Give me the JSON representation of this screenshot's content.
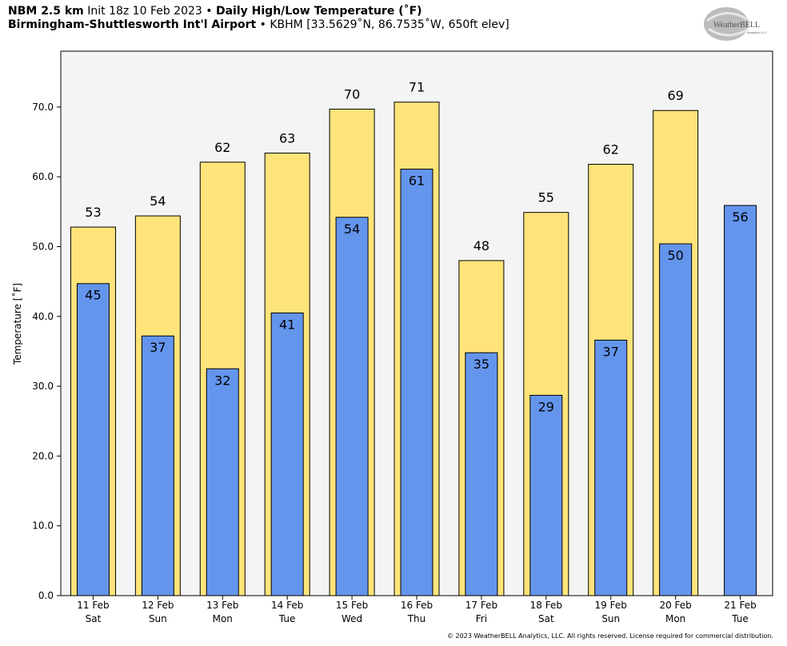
{
  "header": {
    "model": "NBM 2.5 km",
    "init": "Init 18z 10 Feb 2023",
    "bullet": "•",
    "title": "Daily High/Low Temperature (˚F)",
    "station_name": "Birmingham-Shuttlesworth Int'l Airport",
    "station_info": "KBHM [33.5629˚N, 86.7535˚W, 650ft elev]"
  },
  "logo": {
    "text_large": "WeatherBELL",
    "text_small": "Analytics LLC"
  },
  "copyright": "© 2023 WeatherBELL Analytics, LLC. All rights reserved. License required for commercial distribution.",
  "colors": {
    "high": "#ffe47a",
    "low": "#6495ed",
    "plot_bg": "#f4f4f4"
  },
  "chart_data": {
    "type": "bar",
    "ylabel": "Temperature [˚F]",
    "ylim": [
      0,
      78
    ],
    "yticks": [
      "0.0",
      "10.0",
      "20.0",
      "30.0",
      "40.0",
      "50.0",
      "60.0",
      "70.0"
    ],
    "categories": [
      [
        "11 Feb",
        "Sat"
      ],
      [
        "12 Feb",
        "Sun"
      ],
      [
        "13 Feb",
        "Mon"
      ],
      [
        "14 Feb",
        "Tue"
      ],
      [
        "15 Feb",
        "Wed"
      ],
      [
        "16 Feb",
        "Thu"
      ],
      [
        "17 Feb",
        "Fri"
      ],
      [
        "18 Feb",
        "Sat"
      ],
      [
        "19 Feb",
        "Sun"
      ],
      [
        "20 Feb",
        "Mon"
      ],
      [
        "21 Feb",
        "Tue"
      ]
    ],
    "series": [
      {
        "values": [
          52.8,
          54.4,
          62.1,
          63.4,
          69.7,
          70.7,
          48.0,
          54.9,
          61.8,
          69.5,
          null
        ],
        "labels": [
          "53",
          "54",
          "62",
          "63",
          "70",
          "71",
          "48",
          "55",
          "62",
          "69",
          ""
        ]
      },
      {
        "values": [
          44.7,
          37.2,
          32.5,
          40.5,
          54.2,
          61.1,
          34.8,
          28.7,
          36.6,
          50.4,
          55.9
        ],
        "labels": [
          "45",
          "37",
          "32",
          "41",
          "54",
          "61",
          "35",
          "29",
          "37",
          "50",
          "56"
        ]
      }
    ]
  }
}
